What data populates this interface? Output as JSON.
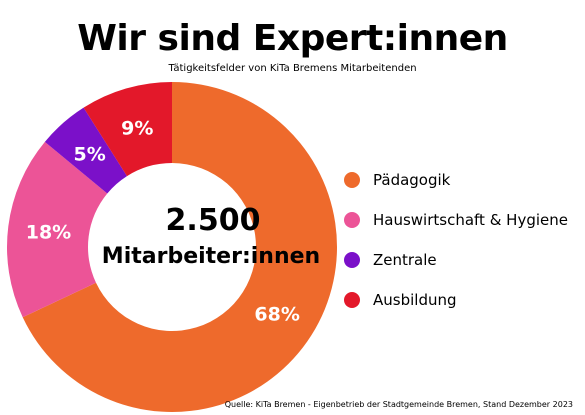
{
  "header": {
    "title": "Wir sind Expert:innen",
    "subtitle": "Tätigkeitsfelder von KiTa Bremens Mitarbeitenden"
  },
  "center": {
    "number": "2.500",
    "label": "Mitarbeiter:innen"
  },
  "source": "Quelle: KiTa Bremen - Eigenbetrieb der Stadtgemeinde Bremen, Stand Dezember 2023",
  "chart_data": {
    "type": "pie",
    "donut": true,
    "categories": [
      "Pädagogik",
      "Hauswirtschaft & Hygiene",
      "Zentrale",
      "Ausbildung"
    ],
    "values": [
      68,
      18,
      5,
      9
    ],
    "value_labels": [
      "68%",
      "18%",
      "5%",
      "9%"
    ],
    "colors": [
      "#ee6a2c",
      "#ec5497",
      "#7b10c9",
      "#e3182a"
    ],
    "legend_position": "right"
  }
}
